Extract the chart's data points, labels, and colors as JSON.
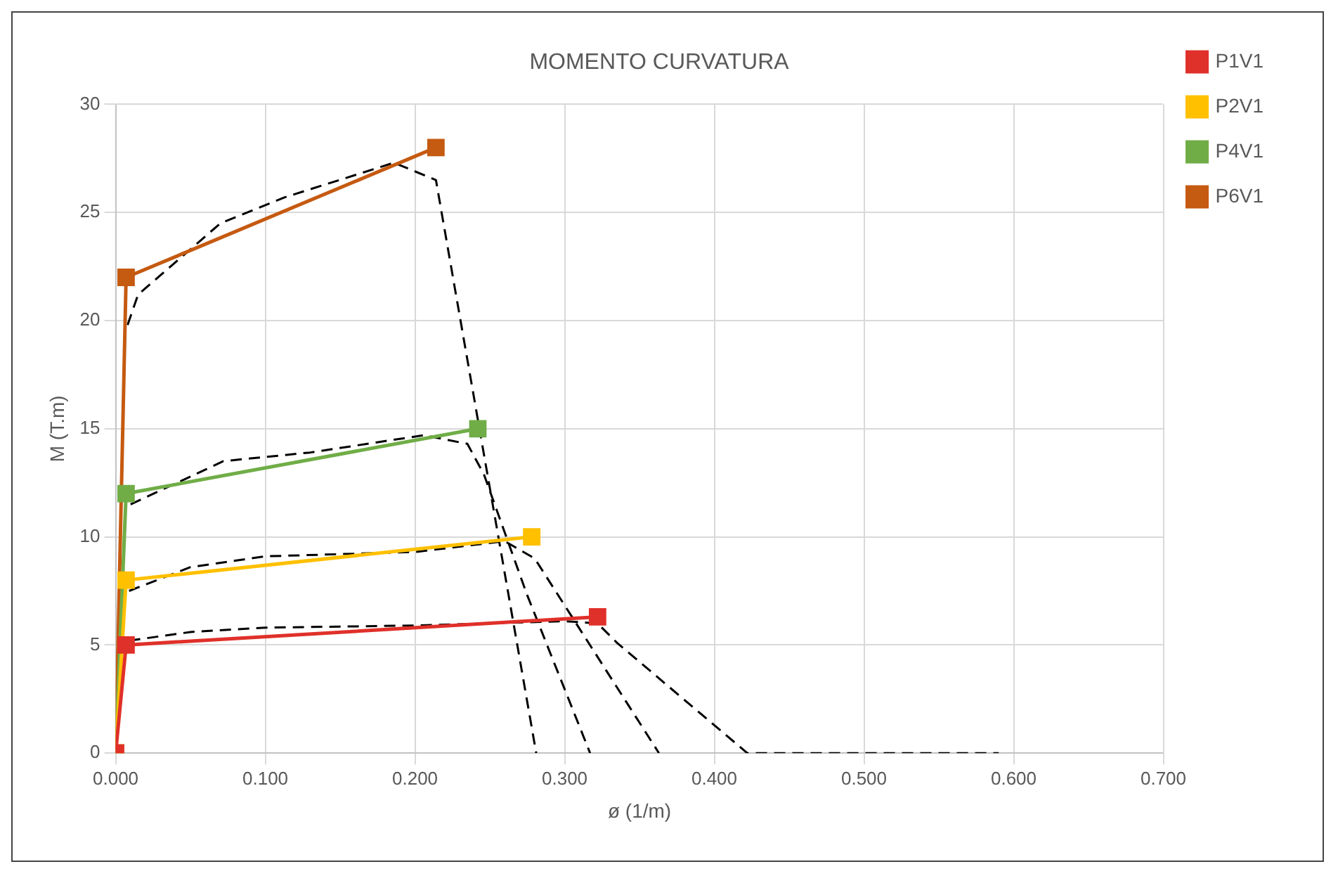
{
  "chart_data": {
    "type": "line",
    "title": "MOMENTO CURVATURA",
    "xlabel": "ø (1/m)",
    "ylabel": "M (T.m)",
    "xlim": [
      0,
      0.7
    ],
    "xticks": [
      {
        "value": 0,
        "label": "0.000"
      },
      {
        "value": 0.1,
        "label": "0.100"
      },
      {
        "value": 0.2,
        "label": "0.200"
      },
      {
        "value": 0.3,
        "label": "0.300"
      },
      {
        "value": 0.4,
        "label": "0.400"
      },
      {
        "value": 0.5,
        "label": "0.500"
      },
      {
        "value": 0.6,
        "label": "0.600"
      },
      {
        "value": 0.7,
        "label": "0.700"
      }
    ],
    "ylim": [
      0,
      30
    ],
    "yticks": [
      0,
      5,
      10,
      15,
      20,
      25,
      30
    ],
    "grid": true,
    "legend": "right",
    "marker": "square",
    "line_style": "solid",
    "series": [
      {
        "name": "P1V1",
        "color": "#e0302a",
        "x": [
          0,
          0.007,
          0.322
        ],
        "values": [
          0,
          5,
          6.3
        ]
      },
      {
        "name": "P2V1",
        "color": "#ffc000",
        "x": [
          0,
          0.007,
          0.278
        ],
        "values": [
          0,
          8,
          10
        ]
      },
      {
        "name": "P4V1",
        "color": "#70ad47",
        "x": [
          0,
          0.007,
          0.242
        ],
        "values": [
          0,
          12,
          15
        ]
      },
      {
        "name": "P6V1",
        "color": "#c55a11",
        "x": [
          0,
          0.007,
          0.214
        ],
        "values": [
          0,
          22,
          28
        ]
      },
      {
        "color": "#000000",
        "marker": "none",
        "line_style": "dashed",
        "x": [
          0.009,
          0.05,
          0.1,
          0.2,
          0.3,
          0.322,
          0.335,
          0.422,
          0.59
        ],
        "values": [
          5.2,
          5.6,
          5.8,
          5.9,
          6.1,
          6.0,
          5.1,
          0,
          0
        ]
      },
      {
        "color": "#000000",
        "marker": "none",
        "line_style": "dashed",
        "x": [
          0.009,
          0.05,
          0.1,
          0.2,
          0.26,
          0.28,
          0.363
        ],
        "values": [
          7.5,
          8.6,
          9.1,
          9.3,
          9.8,
          9,
          0
        ]
      },
      {
        "color": "#000000",
        "marker": "none",
        "line_style": "dashed",
        "x": [
          0.01,
          0.072,
          0.13,
          0.206,
          0.235,
          0.246,
          0.275,
          0.317
        ],
        "values": [
          11.5,
          13.5,
          13.9,
          14.7,
          14.3,
          12.9,
          7.3,
          0
        ]
      },
      {
        "color": "#000000",
        "marker": "none",
        "line_style": "dashed",
        "x": [
          0.008,
          0.015,
          0.07,
          0.113,
          0.186,
          0.214,
          0.281
        ],
        "values": [
          19.8,
          21.2,
          24.5,
          25.7,
          27.3,
          26.5,
          0
        ]
      }
    ]
  }
}
